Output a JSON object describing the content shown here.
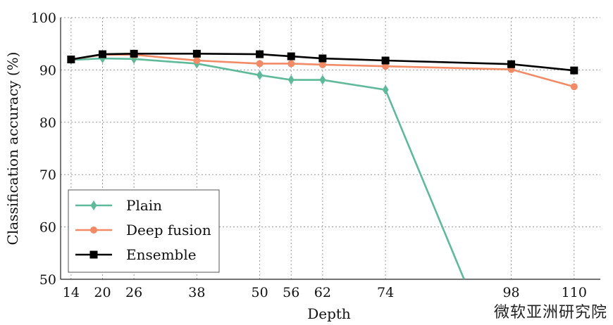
{
  "chart_data": {
    "type": "line",
    "xlabel": "Depth",
    "ylabel": "Classification accuracy (%)",
    "xticks": [
      14,
      20,
      26,
      38,
      50,
      56,
      62,
      74,
      98,
      110
    ],
    "yticks": [
      50,
      60,
      70,
      80,
      90,
      100
    ],
    "xlim": [
      12,
      115
    ],
    "ylim": [
      50,
      100
    ],
    "grid": true,
    "grid_style": "dotted",
    "legend_position": "lower-left",
    "series": [
      {
        "name": "Plain",
        "color": "#5fba9a",
        "marker": "diamond",
        "x": [
          14,
          20,
          26,
          38,
          50,
          56,
          62,
          74,
          89
        ],
        "y": [
          91.9,
          92.2,
          92.1,
          91.2,
          89.0,
          88.1,
          88.1,
          86.2,
          50.0
        ]
      },
      {
        "name": "Deep fusion",
        "color": "#f28a66",
        "marker": "circle",
        "x": [
          14,
          20,
          26,
          38,
          50,
          56,
          62,
          74,
          98,
          110
        ],
        "y": [
          92.0,
          92.9,
          92.9,
          91.8,
          91.2,
          91.2,
          91.0,
          90.7,
          90.1,
          86.8
        ]
      },
      {
        "name": "Ensemble",
        "color": "#000000",
        "marker": "square",
        "x": [
          14,
          20,
          26,
          38,
          50,
          56,
          62,
          74,
          98,
          110
        ],
        "y": [
          92.0,
          93.0,
          93.1,
          93.1,
          93.0,
          92.6,
          92.2,
          91.8,
          91.1,
          89.9
        ]
      }
    ]
  },
  "watermark": "微软亚洲研究院"
}
